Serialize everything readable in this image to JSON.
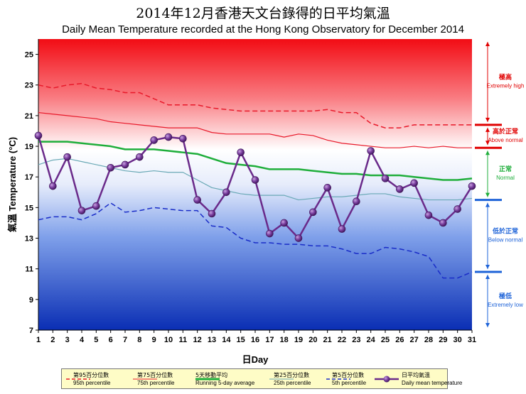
{
  "title_zh": "2014年12月香港天文台錄得的日平均氣溫",
  "title_en": "Daily Mean Temperature recorded at the Hong Kong Observatory for December 2014",
  "colors": {
    "p95": "#e8192a",
    "p75": "#e8192a",
    "running": "#1fae3b",
    "p25": "#6aa9b6",
    "p5": "#1a2dc8",
    "daily": "#6a2a8a",
    "daily_marker": "#7b3fa0",
    "cat_extremely_high": "#e00000",
    "cat_above_normal": "#e00000",
    "cat_normal": "#1fae3b",
    "cat_below_normal": "#1e63d8",
    "cat_extremely_low": "#1e63d8"
  },
  "chart_data": {
    "type": "line",
    "title": "Daily Mean Temperature recorded at the Hong Kong Observatory for December 2014",
    "xlabel_zh": "日",
    "xlabel": "Day",
    "ylabel_zh": "氣溫",
    "ylabel": "Temperature (°C)",
    "ylim": [
      7,
      26
    ],
    "yticks": [
      7,
      9,
      11,
      13,
      15,
      17,
      19,
      21,
      23,
      25
    ],
    "x": [
      1,
      2,
      3,
      4,
      5,
      6,
      7,
      8,
      9,
      10,
      11,
      12,
      13,
      14,
      15,
      16,
      17,
      18,
      19,
      20,
      21,
      22,
      23,
      24,
      25,
      26,
      27,
      28,
      29,
      30,
      31
    ],
    "series": [
      {
        "key": "p95",
        "name_zh": "第95百分位數",
        "name": "95th percentile",
        "style": "dashed",
        "values": [
          23.0,
          22.8,
          23.0,
          23.1,
          22.8,
          22.7,
          22.5,
          22.5,
          22.1,
          21.7,
          21.7,
          21.7,
          21.5,
          21.4,
          21.3,
          21.3,
          21.3,
          21.3,
          21.3,
          21.3,
          21.4,
          21.2,
          21.2,
          20.5,
          20.2,
          20.2,
          20.4,
          20.4,
          20.4,
          20.4,
          20.4
        ]
      },
      {
        "key": "p75",
        "name_zh": "第75百分位數",
        "name": "75th percentile",
        "style": "solid-thin",
        "values": [
          21.2,
          21.1,
          21.0,
          20.9,
          20.8,
          20.6,
          20.5,
          20.4,
          20.3,
          20.2,
          20.2,
          20.2,
          19.9,
          19.8,
          19.8,
          19.8,
          19.8,
          19.6,
          19.8,
          19.7,
          19.4,
          19.2,
          19.1,
          19.0,
          18.9,
          18.9,
          19.0,
          18.9,
          19.0,
          18.9,
          18.9
        ]
      },
      {
        "key": "running",
        "name_zh": "5天移動平均",
        "name": "Running 5-day average",
        "style": "solid-thick",
        "values": [
          19.3,
          19.3,
          19.3,
          19.2,
          19.1,
          19.0,
          18.8,
          18.8,
          18.8,
          18.7,
          18.6,
          18.5,
          18.2,
          17.9,
          17.8,
          17.7,
          17.5,
          17.5,
          17.5,
          17.4,
          17.3,
          17.2,
          17.2,
          17.1,
          17.1,
          17.1,
          17.0,
          16.9,
          16.8,
          16.8,
          16.9
        ]
      },
      {
        "key": "p25",
        "name_zh": "第25百分位數",
        "name": "25th percentile",
        "style": "solid-thin",
        "values": [
          17.8,
          18.1,
          18.2,
          18.0,
          17.8,
          17.6,
          17.4,
          17.3,
          17.4,
          17.3,
          17.3,
          16.8,
          16.3,
          16.1,
          15.9,
          15.8,
          15.8,
          15.8,
          15.5,
          15.6,
          15.7,
          15.7,
          15.8,
          15.9,
          15.9,
          15.7,
          15.6,
          15.5,
          15.5,
          15.5,
          15.6
        ]
      },
      {
        "key": "p5",
        "name_zh": "第5百分位數",
        "name": "5th percentile",
        "style": "dashed",
        "values": [
          14.2,
          14.4,
          14.4,
          14.2,
          14.6,
          15.3,
          14.7,
          14.8,
          15.0,
          14.9,
          14.8,
          14.8,
          13.8,
          13.7,
          13.0,
          12.7,
          12.7,
          12.6,
          12.6,
          12.5,
          12.5,
          12.3,
          12.0,
          12.0,
          12.4,
          12.3,
          12.1,
          11.8,
          10.4,
          10.4,
          10.8
        ]
      },
      {
        "key": "daily",
        "name_zh": "日平均氣溫",
        "name": "Daily mean temperature",
        "style": "markers",
        "values": [
          19.7,
          16.4,
          18.3,
          14.8,
          15.1,
          17.6,
          17.8,
          18.3,
          19.4,
          19.6,
          19.5,
          15.5,
          14.6,
          16.0,
          18.6,
          16.8,
          13.3,
          14.0,
          13.0,
          14.7,
          16.3,
          13.6,
          15.4,
          18.7,
          16.9,
          16.2,
          16.6,
          14.5,
          14.0,
          14.9,
          16.4
        ]
      }
    ],
    "categories": [
      {
        "key": "extremely_high",
        "zh": "極高",
        "en": "Extremely high"
      },
      {
        "key": "above_normal",
        "zh": "高於正常",
        "en": "Above normal"
      },
      {
        "key": "normal",
        "zh": "正常",
        "en": "Normal"
      },
      {
        "key": "below_normal",
        "zh": "低於正常",
        "en": "Below normal"
      },
      {
        "key": "extremely_low",
        "zh": "極低",
        "en": "Extremely low"
      }
    ],
    "category_boundaries": [
      20.4,
      18.9,
      15.5,
      10.8
    ]
  }
}
